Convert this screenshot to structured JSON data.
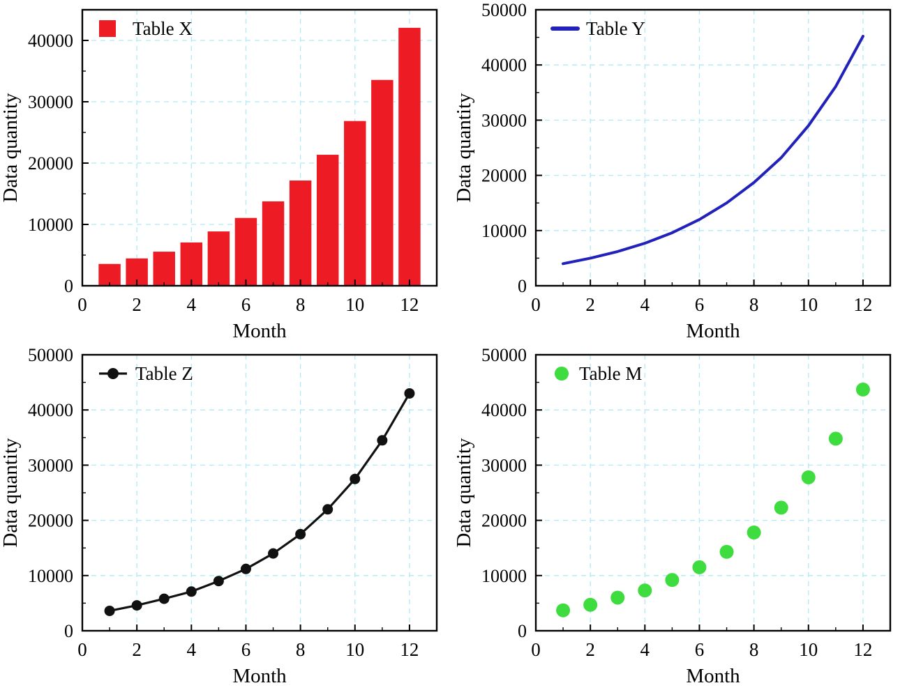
{
  "figure": {
    "layout": "2x2-grid",
    "background": "#ffffff"
  },
  "style": {
    "grid_color": "#aeeaf7",
    "axis_color": "#000000",
    "text_color": "#000000"
  },
  "chart_data": [
    {
      "id": "table-x",
      "type": "bar",
      "legend": "Table X",
      "color": "#ed1c24",
      "xlabel": "Month",
      "ylabel": "Data quantity",
      "x": [
        1,
        2,
        3,
        4,
        5,
        6,
        7,
        8,
        9,
        10,
        11,
        12
      ],
      "values": [
        3500,
        4400,
        5500,
        7000,
        8800,
        11000,
        13700,
        17100,
        21300,
        26800,
        33500,
        42000
      ],
      "xlim": [
        0,
        13
      ],
      "ylim": [
        0,
        45000
      ],
      "xticks": [
        0,
        2,
        4,
        6,
        8,
        10,
        12
      ],
      "yticks": [
        0,
        10000,
        20000,
        30000,
        40000
      ],
      "grid": true,
      "legend_position": "top-left"
    },
    {
      "id": "table-y",
      "type": "line",
      "legend": "Table Y",
      "color": "#2222bb",
      "xlabel": "Month",
      "ylabel": "Data quantity",
      "x": [
        1,
        2,
        3,
        4,
        5,
        6,
        7,
        8,
        9,
        10,
        11,
        12
      ],
      "values": [
        4000,
        5000,
        6200,
        7700,
        9600,
        12000,
        15000,
        18700,
        23200,
        29000,
        36100,
        45200
      ],
      "xlim": [
        0,
        13
      ],
      "ylim": [
        0,
        50000
      ],
      "xticks": [
        0,
        2,
        4,
        6,
        8,
        10,
        12
      ],
      "yticks": [
        0,
        10000,
        20000,
        30000,
        40000,
        50000
      ],
      "grid": true,
      "legend_position": "top-left"
    },
    {
      "id": "table-z",
      "type": "line-marker",
      "legend": "Table Z",
      "color": "#111111",
      "xlabel": "Month",
      "ylabel": "Data quantity",
      "x": [
        1,
        2,
        3,
        4,
        5,
        6,
        7,
        8,
        9,
        10,
        11,
        12
      ],
      "values": [
        3600,
        4600,
        5800,
        7100,
        9000,
        11200,
        14000,
        17500,
        22000,
        27500,
        34500,
        43000
      ],
      "xlim": [
        0,
        13
      ],
      "ylim": [
        0,
        50000
      ],
      "xticks": [
        0,
        2,
        4,
        6,
        8,
        10,
        12
      ],
      "yticks": [
        0,
        10000,
        20000,
        30000,
        40000,
        50000
      ],
      "grid": true,
      "legend_position": "top-left"
    },
    {
      "id": "table-m",
      "type": "scatter",
      "legend": "Table M",
      "color": "#3fdc3f",
      "xlabel": "Month",
      "ylabel": "Data quantity",
      "x": [
        1,
        2,
        3,
        4,
        5,
        6,
        7,
        8,
        9,
        10,
        11,
        12
      ],
      "values": [
        3700,
        4700,
        6000,
        7300,
        9200,
        11500,
        14300,
        17800,
        22300,
        27800,
        34800,
        43700
      ],
      "xlim": [
        0,
        13
      ],
      "ylim": [
        0,
        50000
      ],
      "xticks": [
        0,
        2,
        4,
        6,
        8,
        10,
        12
      ],
      "yticks": [
        0,
        10000,
        20000,
        30000,
        40000,
        50000
      ],
      "grid": true,
      "legend_position": "top-left"
    }
  ]
}
